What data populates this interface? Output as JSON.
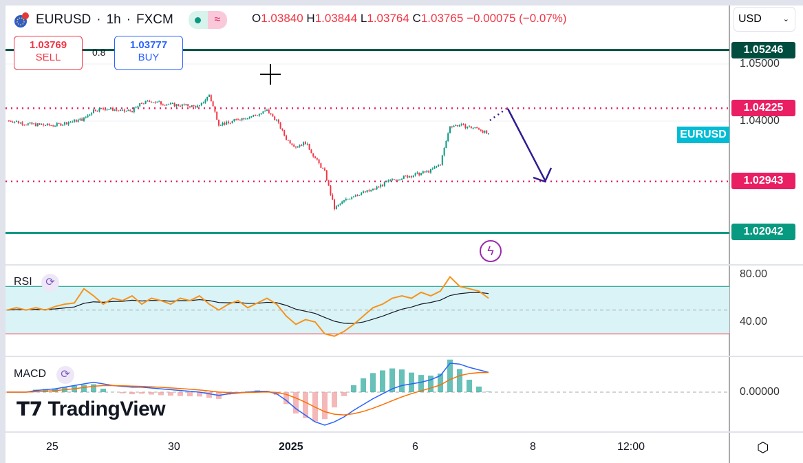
{
  "header": {
    "symbol": "EURUSD",
    "interval": "1h",
    "exchange": "FXCM",
    "separator": "·",
    "ohlc": {
      "o_label": "O",
      "o": "1.03840",
      "h_label": "H",
      "h": "1.03844",
      "l_label": "L",
      "l": "1.03764",
      "c_label": "C",
      "c": "1.03765",
      "change": "−0.00075 (−0.07%)"
    }
  },
  "trade": {
    "sell_price": "1.03769",
    "sell_label": "SELL",
    "spread": "0.8",
    "buy_price": "1.03777",
    "buy_label": "BUY"
  },
  "currency_select": "USD",
  "price_axis": {
    "ticks": [
      "1.05000",
      "1.04000"
    ],
    "tags": [
      {
        "value": "1.05246",
        "color": "#004d40"
      },
      {
        "value": "1.04225",
        "color": "#e91e63"
      },
      {
        "value": "1.02943",
        "color": "#e91e63"
      },
      {
        "value": "1.02042",
        "color": "#089981"
      }
    ],
    "symbol_tag": "EURUSD",
    "symbol_tag_color": "#00bcd4"
  },
  "rsi": {
    "label": "RSI",
    "ticks": [
      "80.00",
      "40.00"
    ]
  },
  "macd": {
    "label": "MACD",
    "ticks": [
      "0.00000"
    ]
  },
  "time_axis": [
    "25",
    "30",
    "2025",
    "6",
    "8",
    "12:00"
  ],
  "logo": "TradingView",
  "colors": {
    "up": "#089981",
    "down": "#f23645",
    "rsi": "#f7931a",
    "macd": "#2962ff",
    "signal": "#ff6d00",
    "arrow": "#311b92"
  },
  "chart_data": {
    "type": "candlestick",
    "ylim": [
      1.0185,
      1.059
    ],
    "horizontal_lines": [
      1.05246,
      1.04225,
      1.02943,
      1.02042
    ],
    "close": [
      1.04012,
      1.03988,
      1.03952,
      1.0394,
      1.03928,
      1.03928,
      1.03964,
      1.04,
      1.04036,
      1.04193,
      1.04217,
      1.04205,
      1.04169,
      1.04181,
      1.04313,
      1.04349,
      1.04313,
      1.04289,
      1.04277,
      1.04265,
      1.04253,
      1.04458,
      1.03952,
      1.03964,
      1.04036,
      1.04072,
      1.04108,
      1.04181,
      1.04012,
      1.03687,
      1.03554,
      1.03627,
      1.03349,
      1.03108,
      1.0247,
      1.02602,
      1.02699,
      1.02747,
      1.02795,
      1.02892,
      1.02964,
      1.03012,
      1.03048,
      1.03084,
      1.03133,
      1.03253,
      1.03916,
      1.03928,
      1.03892,
      1.03867,
      1.03765
    ],
    "rsi": [
      50,
      52,
      50,
      52,
      50,
      53,
      55,
      56,
      68,
      62,
      55,
      60,
      58,
      62,
      55,
      60,
      58,
      55,
      60,
      58,
      62,
      55,
      50,
      55,
      58,
      52,
      56,
      60,
      55,
      45,
      38,
      42,
      40,
      30,
      28,
      32,
      38,
      45,
      52,
      55,
      60,
      62,
      60,
      65,
      62,
      66,
      78,
      70,
      68,
      66,
      60
    ],
    "rsi_bands": [
      70,
      50,
      30
    ],
    "macd": [
      0,
      0,
      0,
      0.0002,
      0.0003,
      0.0004,
      0.0006,
      0.0008,
      0.001,
      0.0012,
      0.001,
      0.0008,
      0.0007,
      0.0006,
      0.0006,
      0.0005,
      0.0004,
      0.0003,
      0.0002,
      0.0001,
      0,
      -0.0002,
      -0.0004,
      -0.0002,
      -0.0001,
      0,
      0.0001,
      0.0001,
      -0.0002,
      -0.001,
      -0.002,
      -0.0028,
      -0.0036,
      -0.004,
      -0.0036,
      -0.003,
      -0.0022,
      -0.0015,
      -0.0008,
      -0.0002,
      0.0004,
      0.0008,
      0.001,
      0.0012,
      0.0015,
      0.002,
      0.0035,
      0.0034,
      0.003,
      0.0027,
      0.0024
    ]
  }
}
